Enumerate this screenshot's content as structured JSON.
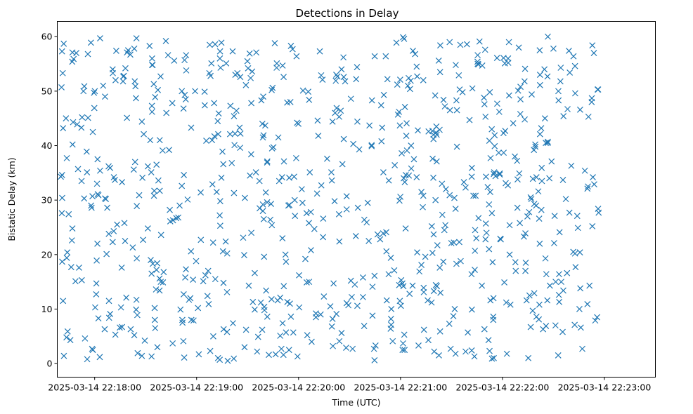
{
  "chart_data": {
    "type": "scatter",
    "title": "Detections in Delay",
    "xlabel": "Time (UTC)",
    "ylabel": "Bistatic Delay (km)",
    "marker": "x",
    "color": "#1f77b4",
    "x_unit": "seconds after 2025-03-14 22:18:00",
    "xlim": [
      -22,
      330
    ],
    "ylim": [
      -2.5,
      62.8
    ],
    "xticks": [
      {
        "value": 0,
        "label": "2025-03-14 22:18:00"
      },
      {
        "value": 60,
        "label": "2025-03-14 22:19:00"
      },
      {
        "value": 120,
        "label": "2025-03-14 22:20:00"
      },
      {
        "value": 180,
        "label": "2025-03-14 22:21:00"
      },
      {
        "value": 240,
        "label": "2025-03-14 22:22:00"
      },
      {
        "value": 300,
        "label": "2025-03-14 22:23:00"
      }
    ],
    "yticks": [
      {
        "value": 0,
        "label": "0"
      },
      {
        "value": 10,
        "label": "10"
      },
      {
        "value": 20,
        "label": "20"
      },
      {
        "value": 30,
        "label": "30"
      },
      {
        "value": 40,
        "label": "40"
      },
      {
        "value": 50,
        "label": "50"
      },
      {
        "value": 60,
        "label": "60"
      }
    ],
    "points_note": "approximate sample of visible detections (uniform spread over 22:17:40 to 22:22:58, 0 to 60 km)",
    "points": []
  }
}
